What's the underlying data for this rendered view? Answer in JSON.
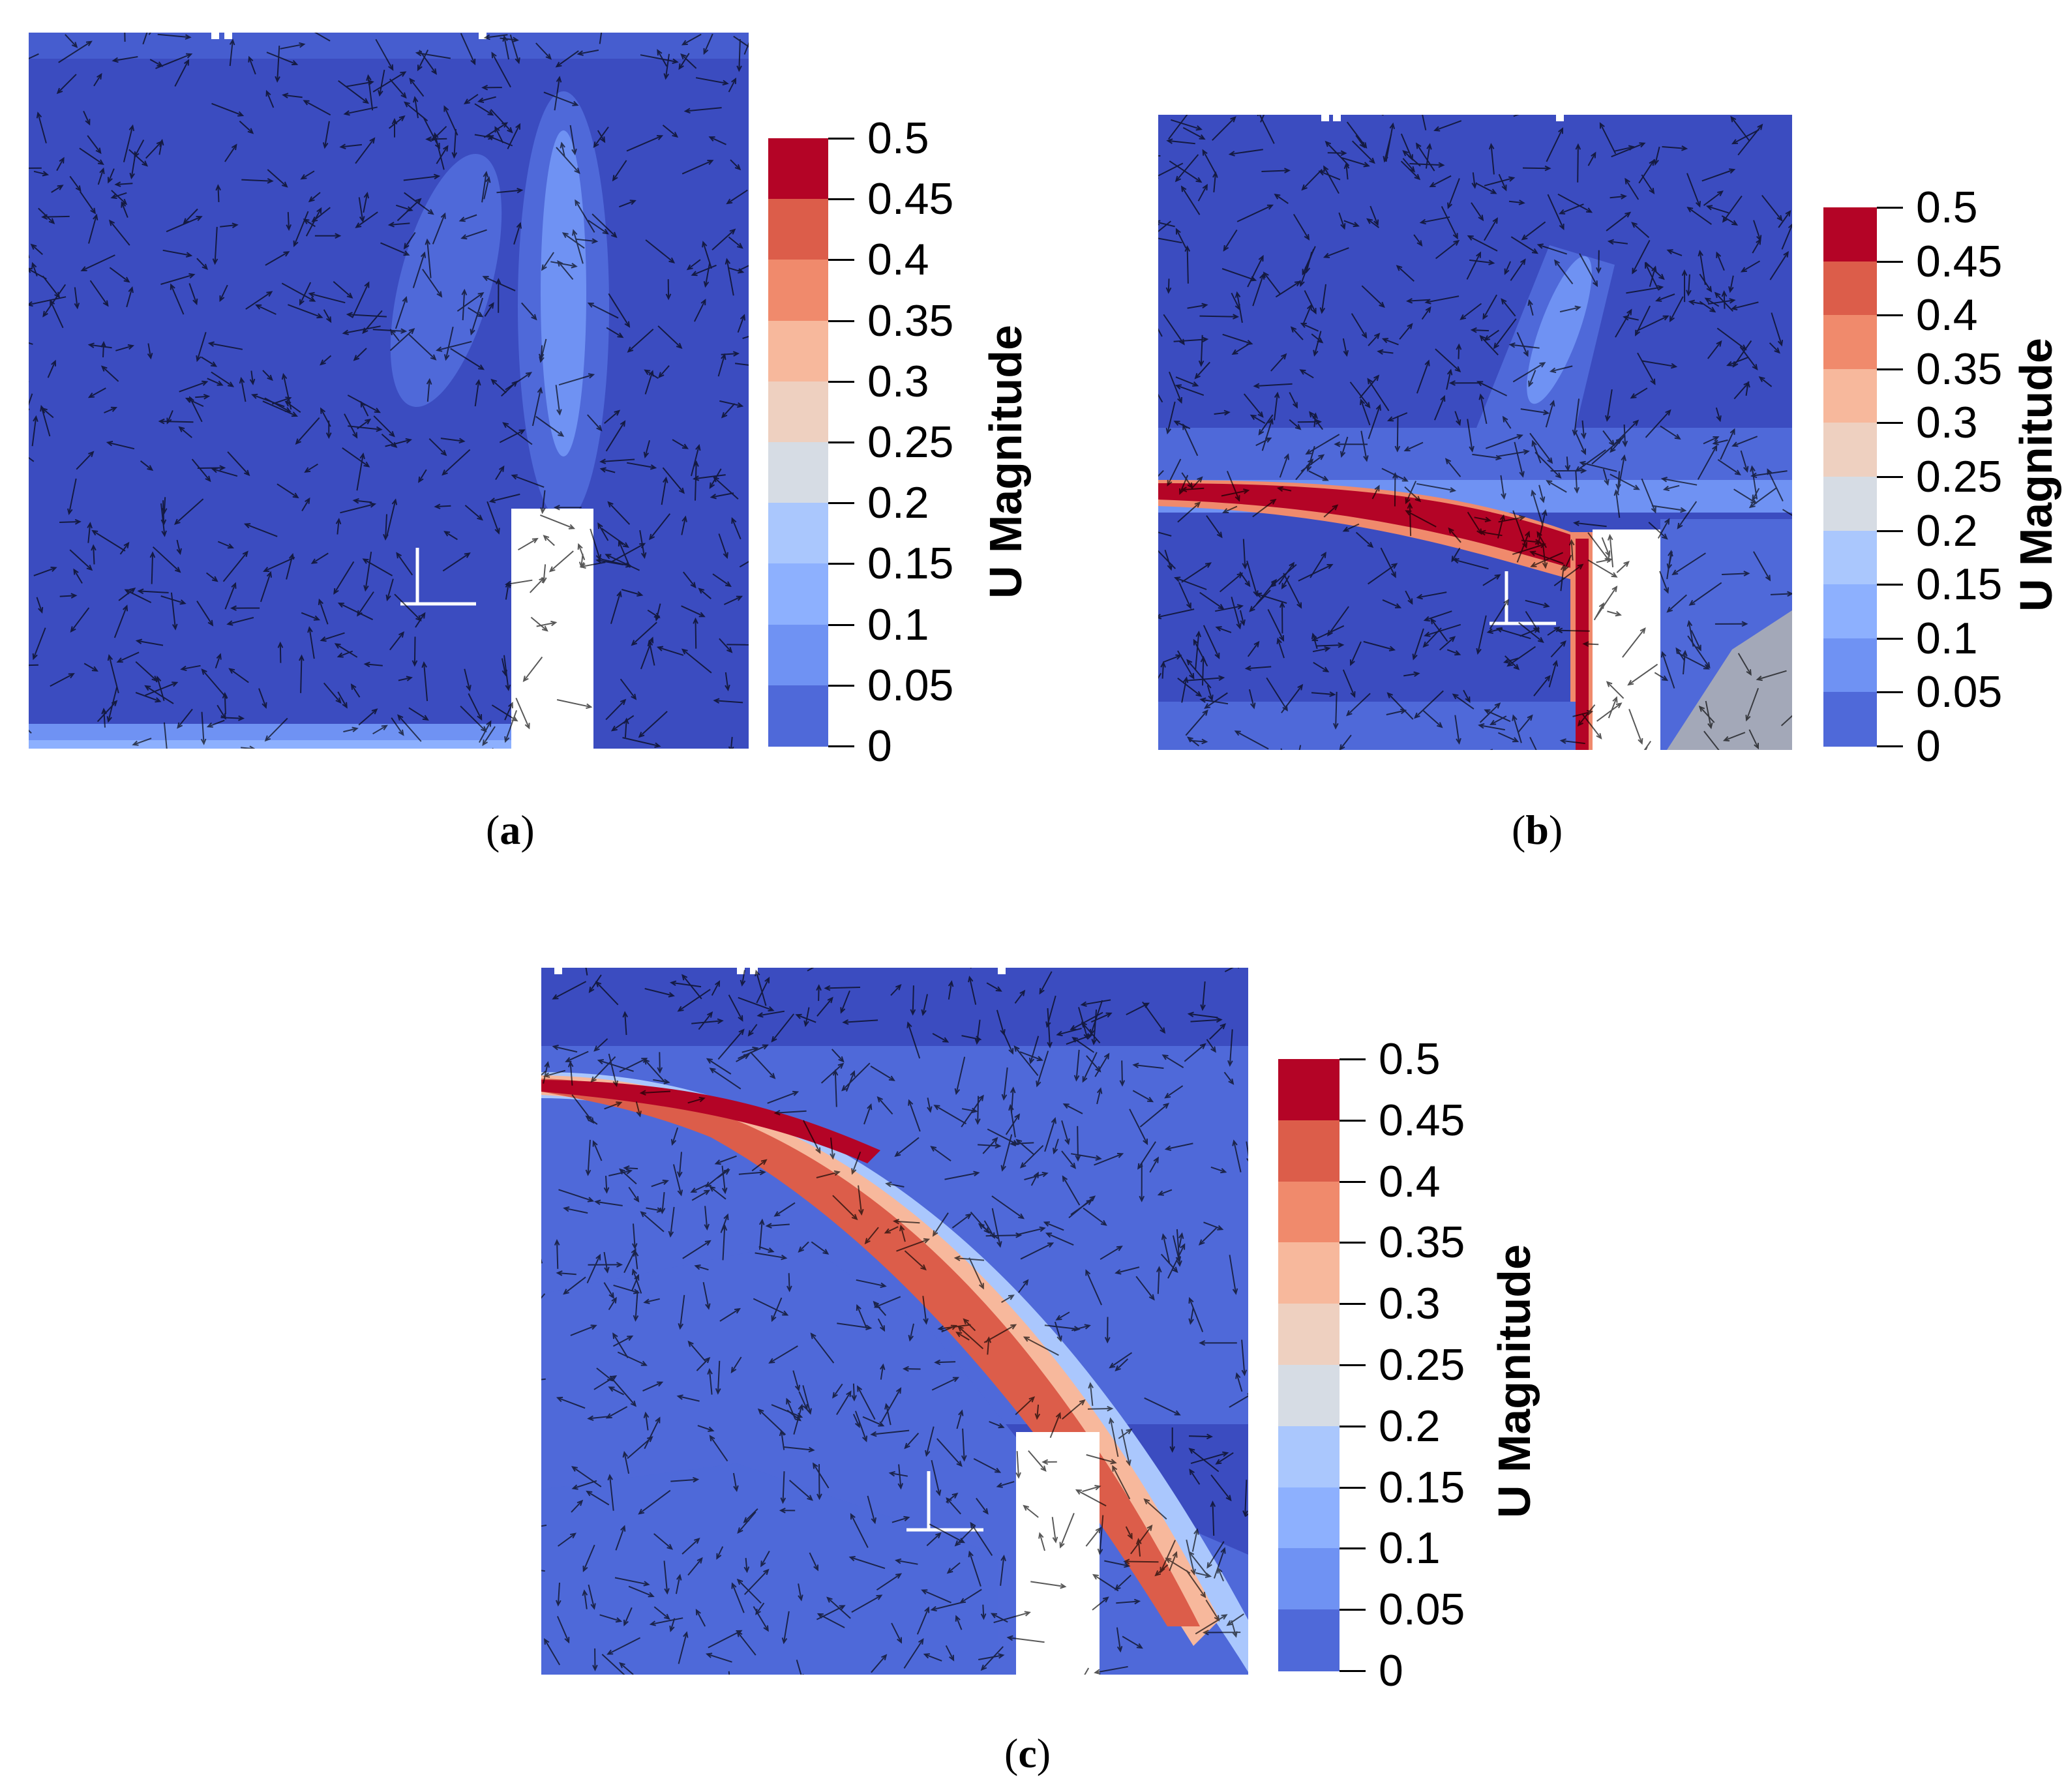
{
  "panels": [
    {
      "caption_open": "(",
      "caption_letter": "a",
      "caption_close": ")",
      "colorbar": {
        "title": "U Magnitude",
        "ticks": [
          "0.5",
          "0.45",
          "0.4",
          "0.35",
          "0.3",
          "0.25",
          "0.2",
          "0.15",
          "0.1",
          "0.05",
          "0"
        ]
      }
    },
    {
      "caption_open": "(",
      "caption_letter": "b",
      "caption_close": ")",
      "colorbar": {
        "title": "U Magnitude",
        "ticks": [
          "0.5",
          "0.45",
          "0.4",
          "0.35",
          "0.3",
          "0.25",
          "0.2",
          "0.15",
          "0.1",
          "0.05",
          "0"
        ]
      }
    },
    {
      "caption_open": "(",
      "caption_letter": "c",
      "caption_close": ")",
      "colorbar": {
        "title": "U Magnitude",
        "ticks": [
          "0.5",
          "0.45",
          "0.4",
          "0.35",
          "0.3",
          "0.25",
          "0.2",
          "0.15",
          "0.1",
          "0.05",
          "0"
        ]
      }
    }
  ],
  "colormap": [
    "#b40426",
    "#dc5d4a",
    "#f08a6c",
    "#f7b89c",
    "#eed0c0",
    "#d6dce4",
    "#aac7fd",
    "#8db0fe",
    "#6f92f3",
    "#4f69d9"
  ]
}
